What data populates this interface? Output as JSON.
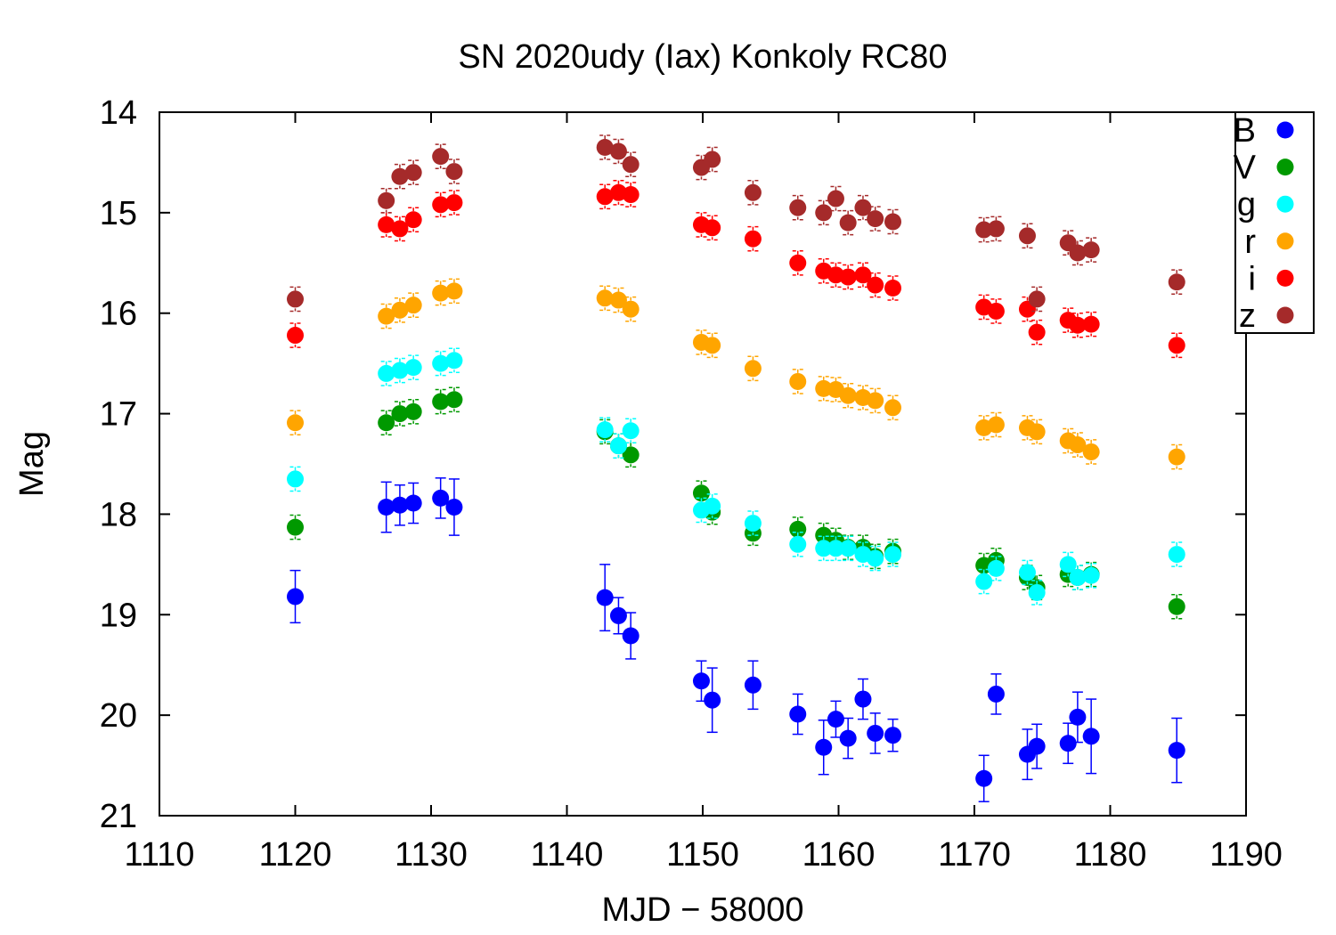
{
  "chart_data": {
    "type": "scatter",
    "title": "SN 2020udy (Iax) Konkoly RC80",
    "xlabel": "MJD − 58000",
    "ylabel": "Mag",
    "xlim": [
      1110,
      1190
    ],
    "ylim": [
      14,
      21
    ],
    "y_inverted": true,
    "xticks": [
      1110,
      1120,
      1130,
      1140,
      1150,
      1160,
      1170,
      1180,
      1190
    ],
    "yticks": [
      14,
      15,
      16,
      17,
      18,
      19,
      20,
      21
    ],
    "grid": false,
    "legend_position": "top-right",
    "series": [
      {
        "name": "B",
        "color": "#0000ff",
        "x": [
          1120,
          1126.7,
          1127.7,
          1128.7,
          1130.7,
          1131.7,
          1142.8,
          1143.8,
          1144.7,
          1149.9,
          1150.7,
          1153.7,
          1157,
          1158.9,
          1159.8,
          1160.7,
          1161.8,
          1162.7,
          1164,
          1170.7,
          1171.6,
          1173.9,
          1174.6,
          1176.9,
          1177.6,
          1178.6,
          1184.9
        ],
        "y": [
          18.82,
          17.93,
          17.91,
          17.89,
          17.84,
          17.93,
          18.83,
          19.01,
          19.21,
          19.66,
          19.85,
          19.7,
          19.99,
          20.32,
          20.04,
          20.23,
          19.84,
          20.18,
          20.2,
          20.63,
          19.79,
          20.39,
          20.31,
          20.28,
          20.02,
          20.21,
          20.35
        ],
        "err": [
          0.26,
          0.25,
          0.2,
          0.2,
          0.2,
          0.28,
          0.33,
          0.18,
          0.23,
          0.2,
          0.32,
          0.24,
          0.2,
          0.27,
          0.18,
          0.2,
          0.2,
          0.2,
          0.16,
          0.23,
          0.2,
          0.25,
          0.22,
          0.2,
          0.25,
          0.37,
          0.32
        ]
      },
      {
        "name": "V",
        "color": "#009900",
        "x": [
          1120,
          1126.7,
          1127.7,
          1128.7,
          1130.7,
          1131.7,
          1142.8,
          1143.8,
          1144.7,
          1149.9,
          1150.7,
          1153.7,
          1157,
          1158.9,
          1159.8,
          1160.7,
          1161.8,
          1162.7,
          1164,
          1170.7,
          1171.6,
          1173.9,
          1174.6,
          1176.9,
          1177.6,
          1178.6,
          1184.9
        ],
        "y": [
          18.13,
          17.09,
          17.0,
          16.98,
          16.88,
          16.86,
          17.18,
          17.32,
          17.41,
          17.79,
          17.98,
          18.19,
          18.15,
          18.21,
          18.26,
          18.33,
          18.33,
          18.42,
          18.37,
          18.51,
          18.46,
          18.63,
          18.73,
          18.6,
          18.63,
          18.6,
          18.92
        ]
      },
      {
        "name": "g",
        "color": "#00ffff",
        "x": [
          1120,
          1126.7,
          1127.7,
          1128.7,
          1130.7,
          1131.7,
          1142.8,
          1143.8,
          1144.7,
          1149.9,
          1150.7,
          1153.7,
          1157,
          1158.9,
          1159.8,
          1160.7,
          1161.8,
          1162.7,
          1164,
          1170.7,
          1171.6,
          1173.9,
          1174.6,
          1176.9,
          1177.6,
          1178.6,
          1184.9
        ],
        "y": [
          17.65,
          16.6,
          16.57,
          16.54,
          16.5,
          16.47,
          17.16,
          17.32,
          17.17,
          17.96,
          17.92,
          18.09,
          18.3,
          18.34,
          18.34,
          18.34,
          18.4,
          18.44,
          18.4,
          18.67,
          18.54,
          18.58,
          18.78,
          18.5,
          18.63,
          18.61,
          18.4
        ]
      },
      {
        "name": "r",
        "color": "#ffa500",
        "x": [
          1120,
          1126.7,
          1127.7,
          1128.7,
          1130.7,
          1131.7,
          1142.8,
          1143.8,
          1144.7,
          1149.9,
          1150.7,
          1153.7,
          1157,
          1158.9,
          1159.8,
          1160.7,
          1161.8,
          1162.7,
          1164,
          1170.7,
          1171.6,
          1173.9,
          1174.6,
          1176.9,
          1177.6,
          1178.6,
          1184.9
        ],
        "y": [
          17.09,
          16.03,
          15.97,
          15.92,
          15.8,
          15.78,
          15.85,
          15.87,
          15.96,
          16.29,
          16.32,
          16.55,
          16.68,
          16.75,
          16.76,
          16.82,
          16.84,
          16.87,
          16.94,
          17.14,
          17.11,
          17.14,
          17.18,
          17.27,
          17.31,
          17.38,
          17.43
        ]
      },
      {
        "name": "i",
        "color": "#ff0000",
        "x": [
          1120,
          1126.7,
          1127.7,
          1128.7,
          1130.7,
          1131.7,
          1142.8,
          1143.8,
          1144.7,
          1149.9,
          1150.7,
          1153.7,
          1157,
          1158.9,
          1159.8,
          1160.7,
          1161.8,
          1162.7,
          1164,
          1170.7,
          1171.6,
          1173.9,
          1174.6,
          1176.9,
          1177.6,
          1178.6,
          1184.9
        ],
        "y": [
          16.22,
          15.12,
          15.16,
          15.07,
          14.92,
          14.9,
          14.84,
          14.8,
          14.82,
          15.12,
          15.15,
          15.26,
          15.5,
          15.58,
          15.62,
          15.64,
          15.62,
          15.72,
          15.75,
          15.94,
          15.98,
          15.96,
          16.19,
          16.07,
          16.12,
          16.11,
          16.32
        ]
      },
      {
        "name": "z",
        "color": "#a52a2a",
        "x": [
          1120,
          1126.7,
          1127.7,
          1128.7,
          1130.7,
          1131.7,
          1142.8,
          1143.8,
          1144.7,
          1149.9,
          1150.7,
          1153.7,
          1157,
          1158.9,
          1159.8,
          1160.7,
          1161.8,
          1162.7,
          1164,
          1170.7,
          1171.6,
          1173.9,
          1174.6,
          1176.9,
          1177.6,
          1178.6,
          1184.9
        ],
        "y": [
          15.86,
          14.88,
          14.64,
          14.6,
          14.44,
          14.59,
          14.35,
          14.39,
          14.52,
          14.55,
          14.47,
          14.8,
          14.95,
          15.0,
          14.86,
          15.1,
          14.95,
          15.06,
          15.09,
          15.17,
          15.16,
          15.23,
          15.86,
          15.3,
          15.4,
          15.37,
          15.69
        ]
      }
    ]
  }
}
